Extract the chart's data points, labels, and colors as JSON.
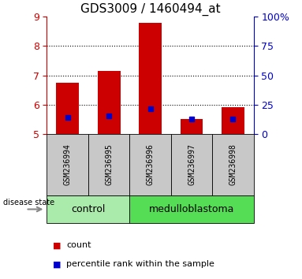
{
  "title": "GDS3009 / 1460494_at",
  "samples": [
    "GSM236994",
    "GSM236995",
    "GSM236996",
    "GSM236997",
    "GSM236998"
  ],
  "red_values": [
    6.75,
    7.15,
    8.8,
    5.5,
    5.9
  ],
  "blue_values": [
    5.55,
    5.62,
    5.85,
    5.5,
    5.5
  ],
  "ymin": 5,
  "ymax": 9,
  "yticks": [
    5,
    6,
    7,
    8,
    9
  ],
  "y2ticks_pct": [
    0,
    25,
    50,
    75,
    100
  ],
  "y2labels": [
    "0",
    "25",
    "50",
    "75",
    "100%"
  ],
  "groups": [
    {
      "label": "control",
      "start": 0,
      "end": 1,
      "color": "#AAEAAA"
    },
    {
      "label": "medulloblastoma",
      "start": 2,
      "end": 4,
      "color": "#55DD55"
    }
  ],
  "group_label": "disease state",
  "legend_items": [
    {
      "color": "#CC0000",
      "label": "count"
    },
    {
      "color": "#0000CC",
      "label": "percentile rank within the sample"
    }
  ],
  "bar_color": "#CC0000",
  "marker_color": "#0000CC",
  "axis_color_left": "#CC0000",
  "axis_color_right": "#0000CC",
  "bar_width": 0.55,
  "grid_color": "black",
  "bg_xticklabel": "#C8C8C8",
  "title_fontsize": 11,
  "tick_fontsize": 9,
  "sample_fontsize": 7,
  "group_fontsize": 9,
  "legend_fontsize": 8
}
